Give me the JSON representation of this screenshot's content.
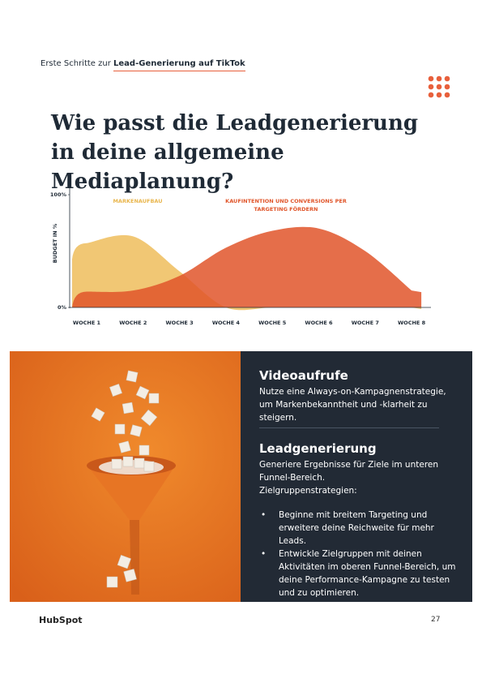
{
  "header": {
    "prefix": "Erste Schritte zur",
    "highlight": "Lead-Generierung auf TikTok"
  },
  "title": "Wie passt die Leadgenerierung in deine allgemeine Mediaplanung?",
  "chart_data": {
    "type": "area",
    "y_label": "BUDGET IN %",
    "categories": [
      "WOCHE 1",
      "WOCHE 2",
      "WOCHE 3",
      "WOCHE 4",
      "WOCHE 5",
      "WOCHE 6",
      "WOCHE 7",
      "WOCHE 8"
    ],
    "series": [
      {
        "name": "MARKENAUFBAU",
        "color": "#f0c165",
        "values": [
          57,
          63,
          32,
          0,
          0,
          0,
          0,
          0
        ]
      },
      {
        "name": "KAUFINTENTION UND CONVERSIONS PER TARGETING FÖRDERN",
        "color": "#e0552a",
        "values": [
          14,
          15,
          28,
          53,
          68,
          70,
          50,
          15
        ]
      }
    ],
    "ylim": [
      0,
      100
    ],
    "yticks": [
      {
        "value": 0,
        "label": "0%"
      },
      {
        "value": 100,
        "label": "100%"
      }
    ]
  },
  "panel": {
    "sections": [
      {
        "heading": "Videoaufrufe",
        "text": "Nutze eine Always-on-Kampagnenstrategie, um Markenbekanntheit und -klarheit zu steigern."
      },
      {
        "heading": "Leadgenerierung",
        "text": "Generiere Ergebnisse für Ziele im unteren Funnel-Bereich.",
        "subtext": "Zielgruppenstrategien:",
        "bullets": [
          "Beginne mit breitem Targeting und erweitere deine Reichweite für mehr Leads.",
          "Entwickle Zielgruppen mit deinen Aktivitäten im oberen Funnel-Bereich, um deine Performance-Kampagne zu testen und zu optimieren."
        ]
      }
    ]
  },
  "footer": {
    "logo": "HubSpot",
    "page": "27"
  }
}
